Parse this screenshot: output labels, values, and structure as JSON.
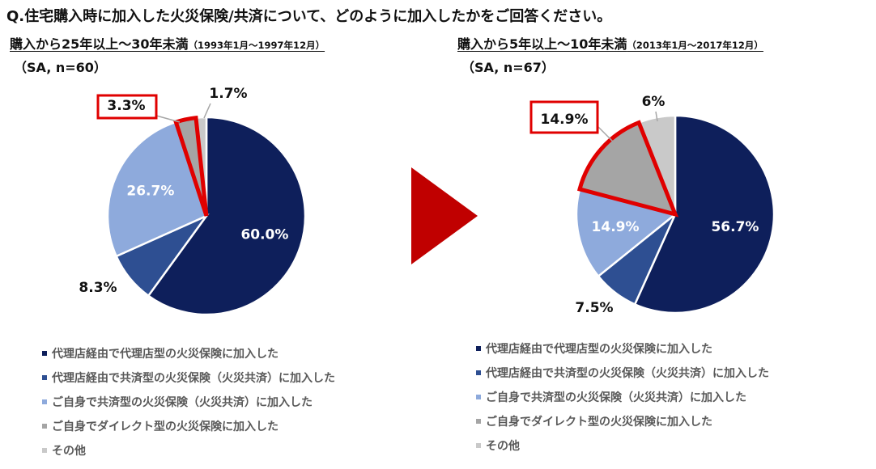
{
  "question": "Q.住宅購入時に加入した火災保険/共済について、どのように加入したかをご回答ください。",
  "colors": {
    "dark_navy": "#0e1f5b",
    "blue": "#2e4f92",
    "light_blue": "#8eaadc",
    "gray": "#a5a5a5",
    "light_gray": "#c9c9c9",
    "highlight": "#e00000",
    "arrow": "#c00000"
  },
  "legend": [
    "代理店経由で代理店型の火災保険に加入した",
    "代理店経由で共済型の火災保険（火災共済）に加入した",
    "ご自身で共済型の火災保険（火災共済）に加入した",
    "ご自身でダイレクト型の火災保険に加入した",
    "その他"
  ],
  "chart_data": [
    {
      "type": "pie",
      "title": "購入から25年以上〜30年未満",
      "period": "（1993年1月〜1997年12月）",
      "sample": "（SA, n=60）",
      "categories": [
        "代理店経由で代理店型の火災保険に加入した",
        "代理店経由で共済型の火災保険（火災共済）に加入した",
        "ご自身で共済型の火災保険（火災共済）に加入した",
        "ご自身でダイレクト型の火災保険に加入した",
        "その他"
      ],
      "values": [
        60.0,
        8.3,
        26.7,
        3.3,
        1.7
      ],
      "labels": [
        "60.0%",
        "8.3%",
        "26.7%",
        "3.3%",
        "1.7%"
      ],
      "highlighted_index": 3
    },
    {
      "type": "pie",
      "title": "購入から5年以上〜10年未満",
      "period": "（2013年1月〜2017年12月）",
      "sample": "（SA, n=67）",
      "categories": [
        "代理店経由で代理店型の火災保険に加入した",
        "代理店経由で共済型の火災保険（火災共済）に加入した",
        "ご自身で共済型の火災保険（火災共済）に加入した",
        "ご自身でダイレクト型の火災保険に加入した",
        "その他"
      ],
      "values": [
        56.7,
        7.5,
        14.9,
        14.9,
        6
      ],
      "labels": [
        "56.7%",
        "7.5%",
        "14.9%",
        "14.9%",
        "6%"
      ],
      "highlighted_index": 3
    }
  ]
}
